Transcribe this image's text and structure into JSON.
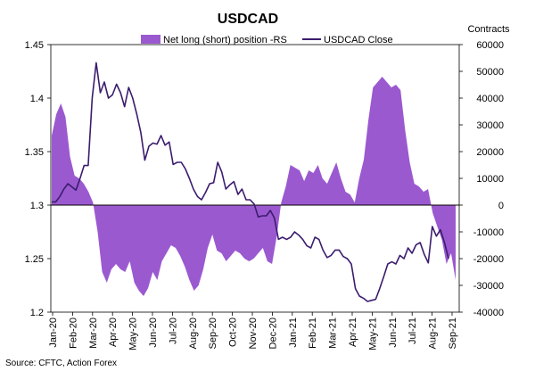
{
  "chart_data": {
    "type": "area+line",
    "title": "USDCAD",
    "source": "Source: CFTC, Action Forex",
    "right_axis_label": "Contracts",
    "legend": {
      "area_label": "Net long (short) position -RS",
      "line_label": "USDCAD Close",
      "placement": "top"
    },
    "colors": {
      "area": "#9b59d0",
      "line": "#3b1c6e",
      "zero_line": "#000000"
    },
    "left_axis": {
      "min": 1.2,
      "max": 1.45,
      "ticks": [
        "1.45",
        "1.4",
        "1.35",
        "1.3",
        "1.25",
        "1.2"
      ],
      "tick_values": [
        1.45,
        1.4,
        1.35,
        1.3,
        1.25,
        1.2
      ]
    },
    "right_axis": {
      "min": -40000,
      "max": 60000,
      "ticks": [
        "60000",
        "50000",
        "40000",
        "30000",
        "20000",
        "10000",
        "0",
        "-10000",
        "-20000",
        "-30000",
        "-40000"
      ],
      "tick_values": [
        60000,
        50000,
        40000,
        30000,
        20000,
        10000,
        0,
        -10000,
        -20000,
        -30000,
        -40000
      ]
    },
    "x_categories": [
      "Jan-20",
      "Feb-20",
      "Mar-20",
      "Apr-20",
      "May-20",
      "Jun-20",
      "Jul-20",
      "Aug-20",
      "Sep-20",
      "Oct-20",
      "Nov-20",
      "Dec-20",
      "Jan-21",
      "Feb-21",
      "Mar-21",
      "Apr-21",
      "May-21",
      "Jun-21",
      "Jul-21",
      "Aug-21",
      "Sep-21"
    ],
    "series_positions": {
      "name": "Net long (short) position -RS",
      "values": [
        26000,
        34000,
        38000,
        33000,
        18000,
        11000,
        10000,
        8000,
        5000,
        1000,
        -10000,
        -25000,
        -29000,
        -24000,
        -22000,
        -24000,
        -25000,
        -21000,
        -29000,
        -32000,
        -34000,
        -31000,
        -25000,
        -28000,
        -21000,
        -18000,
        -15000,
        -16000,
        -19000,
        -23000,
        -28000,
        -32000,
        -30000,
        -24000,
        -16000,
        -11000,
        -17000,
        -18000,
        -21000,
        -19000,
        -17000,
        -18000,
        -20000,
        -21000,
        -20000,
        -18000,
        -16000,
        -21000,
        -22000,
        -12000,
        1000,
        7000,
        15000,
        14000,
        13000,
        9000,
        13000,
        12000,
        15000,
        10000,
        8000,
        12000,
        16000,
        10000,
        5000,
        4000,
        1000,
        10000,
        17000,
        32000,
        44000,
        46000,
        48000,
        46000,
        44000,
        45000,
        43000,
        28000,
        16000,
        8000,
        7000,
        5000,
        6000,
        -3000,
        -8000,
        -13000,
        -22000,
        -18000,
        -28000
      ]
    },
    "series_close": {
      "name": "USDCAD Close",
      "values": [
        1.303,
        1.303,
        1.308,
        1.315,
        1.32,
        1.317,
        1.314,
        1.325,
        1.337,
        1.337,
        1.4,
        1.433,
        1.405,
        1.415,
        1.4,
        1.403,
        1.413,
        1.405,
        1.392,
        1.41,
        1.4,
        1.385,
        1.368,
        1.342,
        1.355,
        1.358,
        1.357,
        1.365,
        1.356,
        1.359,
        1.338,
        1.34,
        1.34,
        1.334,
        1.325,
        1.315,
        1.308,
        1.305,
        1.312,
        1.32,
        1.321,
        1.34,
        1.331,
        1.315,
        1.319,
        1.322,
        1.31,
        1.315,
        1.305,
        1.305,
        1.301,
        1.289,
        1.29,
        1.29,
        1.295,
        1.288,
        1.268,
        1.27,
        1.268,
        1.27,
        1.275,
        1.272,
        1.268,
        1.262,
        1.26,
        1.27,
        1.268,
        1.258,
        1.251,
        1.253,
        1.258,
        1.258,
        1.252,
        1.25,
        1.245,
        1.222,
        1.215,
        1.213,
        1.21,
        1.211,
        1.212,
        1.222,
        1.233,
        1.245,
        1.247,
        1.245,
        1.253,
        1.25,
        1.26,
        1.255,
        1.263,
        1.265,
        1.254,
        1.246,
        1.28,
        1.271,
        1.277,
        1.265,
        1.25
      ]
    }
  }
}
